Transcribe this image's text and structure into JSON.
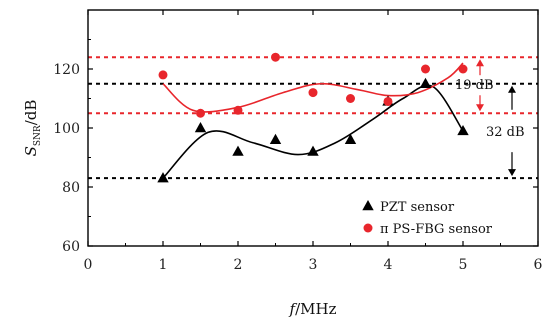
{
  "chart_data": {
    "type": "scatter",
    "xlabel_var": "f",
    "xlabel_unit": "/MHz",
    "ylabel_var": "S",
    "ylabel_sub": "SNR",
    "ylabel_unit": "/dB",
    "xlim": [
      0,
      6
    ],
    "ylim": [
      60,
      140
    ],
    "xticks": [
      "0",
      "1",
      "2",
      "3",
      "4",
      "5",
      "6"
    ],
    "yticks": [
      "60",
      "80",
      "100",
      "120"
    ],
    "grid": false,
    "legend_position": "bottom-right",
    "series": [
      {
        "name": "PZT  sensor",
        "marker": "triangle",
        "color": "#000000",
        "x": [
          1.0,
          1.5,
          2.0,
          2.5,
          3.0,
          3.5,
          4.0,
          4.5,
          5.0
        ],
        "y": [
          83,
          100,
          92,
          96,
          92,
          96,
          109,
          115,
          99
        ]
      },
      {
        "name": "π PS-FBG  sensor",
        "marker": "circle",
        "color": "#e8262c",
        "x": [
          1.0,
          1.5,
          2.0,
          2.5,
          3.0,
          3.5,
          4.0,
          4.5,
          5.0
        ],
        "y": [
          118,
          105,
          106,
          124,
          112,
          110,
          109,
          120,
          120
        ]
      }
    ],
    "reference_lines": [
      {
        "y": 124,
        "color": "#e8262c"
      },
      {
        "y": 105,
        "color": "#e8262c"
      },
      {
        "y": 115,
        "color": "#000000"
      },
      {
        "y": 83,
        "color": "#000000"
      }
    ],
    "annotations": [
      {
        "text": "19  dB",
        "from": 105,
        "to": 124,
        "color": "#e8262c"
      },
      {
        "text": "32  dB",
        "from": 83,
        "to": 115,
        "color": "#000000"
      }
    ],
    "fit_curves": [
      {
        "color": "#000000",
        "x": [
          1.0,
          1.6,
          2.2,
          2.8,
          3.3,
          3.8,
          4.2,
          4.6,
          5.0
        ],
        "y": [
          83,
          98.5,
          95,
          91,
          95,
          103,
          110,
          114,
          99
        ]
      },
      {
        "color": "#e8262c",
        "x": [
          1.0,
          1.4,
          2.0,
          2.6,
          3.1,
          3.6,
          4.0,
          4.4,
          4.8,
          5.0
        ],
        "y": [
          115,
          106,
          107,
          112,
          115,
          113,
          111,
          112,
          117,
          122
        ]
      }
    ]
  }
}
